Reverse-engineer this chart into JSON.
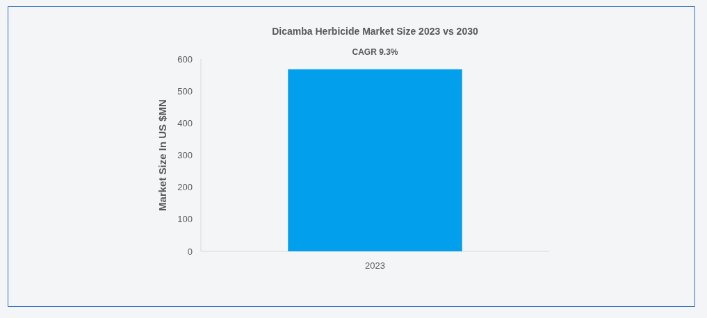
{
  "chart_data": {
    "type": "bar",
    "title": "Dicamba Herbicide Market Size 2023 vs 2030",
    "ylabel": "Market Size In US $MN",
    "annotations": [
      "CAGR 9.3%"
    ],
    "categories": [
      "2023"
    ],
    "values": [
      568
    ],
    "color": "#029fec",
    "ylim": [
      0,
      600
    ],
    "yticks": [
      0,
      100,
      200,
      300,
      400,
      500,
      600
    ],
    "grid": false
  }
}
